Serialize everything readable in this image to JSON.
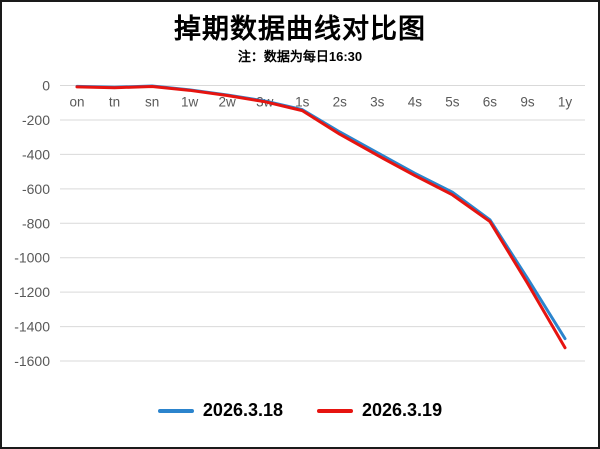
{
  "window": {
    "background": "#ffffff",
    "border_color": "#1a1a1a"
  },
  "header": {
    "title": "掉期数据曲线对比图",
    "subtitle": "注：数据为每日16:30"
  },
  "chart_data": {
    "type": "line",
    "title": "掉期数据曲线对比图",
    "subtitle": "注：数据为每日16:30",
    "categories": [
      "on",
      "tn",
      "sn",
      "1w",
      "2w",
      "3w",
      "1s",
      "2s",
      "3s",
      "4s",
      "5s",
      "6s",
      "9s",
      "1y"
    ],
    "series": [
      {
        "name": "2026.3.18",
        "color": "#2b84cd",
        "values": [
          -5,
          -10,
          -3,
          -25,
          -55,
          -90,
          -140,
          -270,
          -390,
          -510,
          -620,
          -780,
          -1120,
          -1470
        ]
      },
      {
        "name": "2026.3.19",
        "color": "#e61410",
        "values": [
          -8,
          -13,
          -6,
          -28,
          -58,
          -94,
          -146,
          -283,
          -405,
          -523,
          -635,
          -790,
          -1148,
          -1523
        ]
      }
    ],
    "xlabel": "",
    "ylabel": "",
    "ylim": [
      -1600,
      0
    ],
    "yticks": [
      0,
      -200,
      -400,
      -600,
      -800,
      -1000,
      -1200,
      -1400,
      -1600
    ],
    "grid": "horizontal",
    "gridline_color": "#d9d9d9",
    "axis_label_color": "#595959",
    "legend_position": "bottom",
    "x_label_position": "below-zero-line"
  }
}
